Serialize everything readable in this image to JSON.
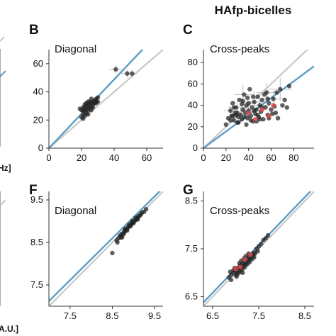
{
  "figure": {
    "title": "HAfp-bicelles",
    "left_fragments": [
      "Hz]",
      "A.U.]"
    ]
  },
  "colors": {
    "identity_line": "#c8c8c8",
    "fit_line": "#5b9dc7",
    "points": "#222222",
    "highlight_points": "#e0464a",
    "error_bars": "#bdbdbd"
  },
  "chart_data": [
    {
      "panel": "B",
      "type": "scatter",
      "title": "Diagonal",
      "xlim": [
        0,
        70
      ],
      "ylim": [
        0,
        70
      ],
      "xticks": [
        "0",
        "20",
        "40",
        "60"
      ],
      "yticks": [
        "0",
        "20",
        "40",
        "60"
      ],
      "xtick_values": [
        0,
        20,
        40,
        60
      ],
      "ytick_values": [
        0,
        20,
        40,
        60
      ],
      "identity_line": true,
      "fit_slope": 1.22,
      "points": [
        [
          20,
          22
        ],
        [
          21,
          24
        ],
        [
          22,
          26
        ],
        [
          23,
          28
        ],
        [
          24,
          30
        ],
        [
          25,
          31
        ],
        [
          26,
          32
        ],
        [
          27,
          33
        ],
        [
          28,
          34
        ],
        [
          29,
          35
        ],
        [
          21,
          27
        ],
        [
          22,
          29
        ],
        [
          23,
          25
        ],
        [
          24,
          27
        ],
        [
          25,
          28
        ],
        [
          26,
          29
        ],
        [
          23,
          31
        ],
        [
          22,
          23
        ],
        [
          24,
          33
        ],
        [
          27,
          31
        ],
        [
          28,
          32
        ],
        [
          20,
          27
        ],
        [
          21,
          29
        ],
        [
          25,
          33
        ],
        [
          26,
          35
        ],
        [
          29,
          32
        ],
        [
          30,
          36
        ],
        [
          22,
          31
        ],
        [
          24,
          24
        ],
        [
          26,
          27
        ],
        [
          23,
          32
        ],
        [
          21,
          21
        ],
        [
          19,
          28
        ],
        [
          27,
          29
        ],
        [
          29,
          33
        ],
        [
          30,
          33
        ],
        [
          41,
          56
        ],
        [
          48,
          53
        ],
        [
          51,
          53
        ]
      ],
      "highlight_points": [],
      "x_errors": [
        [
          41,
          56,
          4
        ],
        [
          48,
          53,
          4
        ],
        [
          51,
          53,
          3
        ],
        [
          22,
          26,
          2
        ],
        [
          26,
          32,
          2
        ]
      ],
      "y_errors": [
        [
          41,
          56,
          3
        ],
        [
          48,
          53,
          3
        ],
        [
          51,
          53,
          3
        ],
        [
          22,
          26,
          3
        ],
        [
          26,
          32,
          3
        ]
      ]
    },
    {
      "panel": "C",
      "type": "scatter",
      "title": "Cross-peaks",
      "xlim": [
        0,
        98
      ],
      "ylim": [
        0,
        92
      ],
      "xticks": [
        "0",
        "20",
        "40",
        "60",
        "80"
      ],
      "yticks": [
        "0",
        "20",
        "40",
        "60",
        "80"
      ],
      "xtick_values": [
        0,
        20,
        40,
        60,
        80
      ],
      "ytick_values": [
        0,
        20,
        40,
        60,
        80
      ],
      "identity_line": true,
      "fit_slope": 0.78,
      "points": [
        [
          20,
          22
        ],
        [
          22,
          28
        ],
        [
          24,
          35
        ],
        [
          25,
          30
        ],
        [
          26,
          42
        ],
        [
          27,
          26
        ],
        [
          28,
          33
        ],
        [
          29,
          38
        ],
        [
          30,
          24
        ],
        [
          31,
          29
        ],
        [
          32,
          45
        ],
        [
          33,
          31
        ],
        [
          34,
          27
        ],
        [
          35,
          36
        ],
        [
          36,
          50
        ],
        [
          37,
          33
        ],
        [
          38,
          40
        ],
        [
          39,
          28
        ],
        [
          40,
          35
        ],
        [
          41,
          55
        ],
        [
          42,
          30
        ],
        [
          43,
          38
        ],
        [
          44,
          25
        ],
        [
          45,
          43
        ],
        [
          46,
          32
        ],
        [
          47,
          36
        ],
        [
          48,
          48
        ],
        [
          49,
          29
        ],
        [
          50,
          40
        ],
        [
          51,
          34
        ],
        [
          52,
          45
        ],
        [
          53,
          27
        ],
        [
          55,
          38
        ],
        [
          56,
          52
        ],
        [
          57,
          31
        ],
        [
          58,
          42
        ],
        [
          60,
          36
        ],
        [
          62,
          46
        ],
        [
          64,
          33
        ],
        [
          66,
          28
        ],
        [
          68,
          55
        ],
        [
          70,
          40
        ],
        [
          72,
          45
        ],
        [
          74,
          38
        ],
        [
          76,
          58
        ],
        [
          24,
          26
        ],
        [
          27,
          38
        ],
        [
          31,
          24
        ],
        [
          34,
          41
        ],
        [
          36,
          29
        ],
        [
          39,
          47
        ],
        [
          42,
          26
        ],
        [
          45,
          35
        ],
        [
          48,
          31
        ],
        [
          52,
          38
        ],
        [
          58,
          28
        ],
        [
          63,
          39
        ],
        [
          30,
          33
        ],
        [
          26,
          30
        ],
        [
          38,
          22
        ],
        [
          44,
          48
        ],
        [
          50,
          27
        ],
        [
          54,
          50
        ],
        [
          61,
          32
        ],
        [
          35,
          44
        ],
        [
          29,
          31
        ],
        [
          40,
          42
        ],
        [
          47,
          25
        ],
        [
          57,
          46
        ],
        [
          65,
          52
        ]
      ],
      "highlight_points": [
        [
          40,
          33
        ],
        [
          52,
          36
        ],
        [
          58,
          30
        ],
        [
          46,
          27
        ],
        [
          62,
          40
        ]
      ],
      "x_errors": [
        [
          30,
          38,
          8
        ],
        [
          45,
          43,
          10
        ],
        [
          56,
          52,
          9
        ],
        [
          68,
          55,
          10
        ],
        [
          40,
          35,
          7
        ],
        [
          24,
          35,
          6
        ],
        [
          35,
          50,
          8
        ],
        [
          50,
          40,
          9
        ],
        [
          62,
          46,
          8
        ],
        [
          33,
          31,
          7
        ]
      ],
      "y_errors": [
        [
          30,
          38,
          9
        ],
        [
          45,
          43,
          10
        ],
        [
          56,
          52,
          9
        ],
        [
          68,
          55,
          11
        ],
        [
          40,
          35,
          8
        ],
        [
          24,
          35,
          7
        ],
        [
          35,
          50,
          9
        ],
        [
          50,
          40,
          10
        ],
        [
          62,
          46,
          8
        ],
        [
          33,
          31,
          7
        ]
      ]
    },
    {
      "panel": "F",
      "type": "scatter",
      "title": "Diagonal",
      "xlim": [
        7.0,
        9.7
      ],
      "ylim": [
        7.0,
        9.7
      ],
      "xticks": [
        "7.5",
        "8.5",
        "9.5"
      ],
      "yticks": [
        "7.5",
        "8.5",
        "9.5"
      ],
      "xtick_values": [
        7.5,
        8.5,
        9.5
      ],
      "ytick_values": [
        7.5,
        8.5,
        9.5
      ],
      "identity_line": true,
      "fit_line": [
        [
          7.0,
          7.12
        ],
        [
          9.7,
          9.78
        ]
      ],
      "points": [
        [
          8.5,
          8.25
        ],
        [
          8.6,
          8.55
        ],
        [
          8.65,
          8.6
        ],
        [
          8.7,
          8.62
        ],
        [
          8.72,
          8.7
        ],
        [
          8.75,
          8.68
        ],
        [
          8.78,
          8.75
        ],
        [
          8.8,
          8.78
        ],
        [
          8.82,
          8.8
        ],
        [
          8.85,
          8.82
        ],
        [
          8.87,
          8.86
        ],
        [
          8.9,
          8.88
        ],
        [
          8.92,
          8.9
        ],
        [
          8.95,
          8.93
        ],
        [
          8.97,
          8.96
        ],
        [
          9.0,
          8.98
        ],
        [
          9.02,
          9.0
        ],
        [
          9.05,
          9.03
        ],
        [
          9.08,
          9.06
        ],
        [
          9.1,
          9.08
        ],
        [
          9.12,
          9.12
        ],
        [
          9.15,
          9.13
        ],
        [
          9.18,
          9.16
        ],
        [
          9.2,
          9.2
        ],
        [
          9.25,
          9.22
        ],
        [
          8.78,
          8.72
        ],
        [
          8.85,
          8.78
        ],
        [
          8.93,
          8.88
        ],
        [
          9.0,
          8.95
        ],
        [
          8.68,
          8.66
        ],
        [
          8.8,
          8.82
        ],
        [
          8.9,
          8.92
        ],
        [
          9.05,
          9.08
        ],
        [
          8.62,
          8.5
        ],
        [
          8.73,
          8.62
        ],
        [
          9.3,
          9.28
        ],
        [
          8.97,
          9.0
        ],
        [
          9.1,
          9.04
        ]
      ],
      "highlight_points": []
    },
    {
      "panel": "G",
      "type": "scatter",
      "title": "Cross-peaks",
      "xlim": [
        6.3,
        8.7
      ],
      "ylim": [
        6.3,
        8.7
      ],
      "xticks": [
        "6.5",
        "7.5",
        "8.5"
      ],
      "yticks": [
        "6.5",
        "7.5",
        "8.5"
      ],
      "xtick_values": [
        6.5,
        7.5,
        8.5
      ],
      "ytick_values": [
        6.5,
        7.5,
        8.5
      ],
      "identity_line": true,
      "fit_line": [
        [
          6.3,
          6.38
        ],
        [
          8.7,
          8.78
        ]
      ],
      "points": [
        [
          6.85,
          6.9
        ],
        [
          6.9,
          6.95
        ],
        [
          6.95,
          7.0
        ],
        [
          7.0,
          7.05
        ],
        [
          7.02,
          7.0
        ],
        [
          7.05,
          7.1
        ],
        [
          7.08,
          7.05
        ],
        [
          7.1,
          7.15
        ],
        [
          7.12,
          7.1
        ],
        [
          7.15,
          7.18
        ],
        [
          7.18,
          7.15
        ],
        [
          7.2,
          7.22
        ],
        [
          7.22,
          7.18
        ],
        [
          7.25,
          7.28
        ],
        [
          7.28,
          7.25
        ],
        [
          7.3,
          7.32
        ],
        [
          7.32,
          7.3
        ],
        [
          7.35,
          7.38
        ],
        [
          7.38,
          7.35
        ],
        [
          7.4,
          7.42
        ],
        [
          7.42,
          7.4
        ],
        [
          7.45,
          7.5
        ],
        [
          7.48,
          7.45
        ],
        [
          7.5,
          7.55
        ],
        [
          7.55,
          7.6
        ],
        [
          7.6,
          7.68
        ],
        [
          7.65,
          7.72
        ],
        [
          7.0,
          6.95
        ],
        [
          7.05,
          6.98
        ],
        [
          7.1,
          7.02
        ],
        [
          7.15,
          7.08
        ],
        [
          7.2,
          7.12
        ],
        [
          7.25,
          7.18
        ],
        [
          7.3,
          7.22
        ],
        [
          6.95,
          7.05
        ],
        [
          7.08,
          7.2
        ],
        [
          7.18,
          7.3
        ],
        [
          7.28,
          7.4
        ],
        [
          6.9,
          6.85
        ],
        [
          7.12,
          7.25
        ],
        [
          7.22,
          7.35
        ],
        [
          7.35,
          7.28
        ],
        [
          6.98,
          7.1
        ],
        [
          7.4,
          7.32
        ],
        [
          7.7,
          7.78
        ],
        [
          7.02,
          6.92
        ],
        [
          7.15,
          7.0
        ],
        [
          6.88,
          7.02
        ]
      ],
      "highlight_points": [
        [
          7.0,
          7.08
        ],
        [
          7.2,
          7.28
        ],
        [
          7.32,
          7.38
        ],
        [
          7.1,
          7.12
        ]
      ]
    }
  ]
}
